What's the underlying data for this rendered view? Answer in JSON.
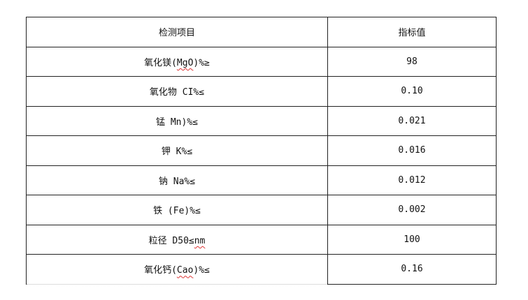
{
  "table": {
    "headers": [
      "检测项目",
      "指标值"
    ],
    "rows": [
      {
        "item_pre": "氧化镁(",
        "item_sq": "MgO",
        "item_post": ")%≥",
        "value": "98"
      },
      {
        "item_pre": "氧化物 CI%≤",
        "item_sq": "",
        "item_post": "",
        "value": "0.10"
      },
      {
        "item_pre": "锰 Mn)%≤",
        "item_sq": "",
        "item_post": "",
        "value": "0.021"
      },
      {
        "item_pre": "钾 K%≤",
        "item_sq": "",
        "item_post": "",
        "value": "0.016"
      },
      {
        "item_pre": "钠 Na%≤",
        "item_sq": "",
        "item_post": "",
        "value": "0.012"
      },
      {
        "item_pre": "铁 (Fe)%≤",
        "item_sq": "",
        "item_post": "",
        "value": "0.002"
      },
      {
        "item_pre": "粒径 D50≤",
        "item_sq": "nm",
        "item_post": "",
        "value": "100"
      },
      {
        "item_pre": "氧化钙(",
        "item_sq": "Cao",
        "item_post": ")%≤",
        "value": "0.16"
      }
    ]
  }
}
